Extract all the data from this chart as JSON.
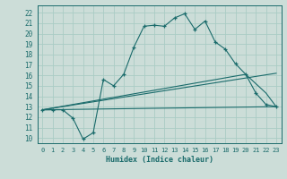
{
  "xlabel": "Humidex (Indice chaleur)",
  "xlim": [
    -0.5,
    23.5
  ],
  "ylim": [
    9.5,
    22.7
  ],
  "xticks": [
    0,
    1,
    2,
    3,
    4,
    5,
    6,
    7,
    8,
    9,
    10,
    11,
    12,
    13,
    14,
    15,
    16,
    17,
    18,
    19,
    20,
    21,
    22,
    23
  ],
  "yticks": [
    10,
    11,
    12,
    13,
    14,
    15,
    16,
    17,
    18,
    19,
    20,
    21,
    22
  ],
  "bg_color": "#ccddd8",
  "line_color": "#1a6b6b",
  "grid_color": "#aaccc4",
  "line1_x": [
    0,
    1,
    2,
    3,
    4,
    5,
    6,
    7,
    8,
    9,
    10,
    11,
    12,
    13,
    14,
    15,
    16,
    17,
    18,
    19,
    20,
    21,
    22,
    23
  ],
  "line1_y": [
    12.7,
    12.7,
    12.7,
    11.9,
    9.9,
    10.5,
    15.6,
    15.0,
    16.1,
    18.7,
    20.7,
    20.8,
    20.7,
    21.5,
    21.9,
    20.4,
    21.2,
    19.2,
    18.5,
    17.1,
    16.1,
    14.3,
    13.2,
    13.0
  ],
  "line2_x": [
    0,
    23
  ],
  "line2_y": [
    12.7,
    13.0
  ],
  "line3_x": [
    0,
    23
  ],
  "line3_y": [
    12.7,
    16.2
  ],
  "line4_x": [
    0,
    20,
    22,
    23
  ],
  "line4_y": [
    12.7,
    16.1,
    14.3,
    13.0
  ]
}
